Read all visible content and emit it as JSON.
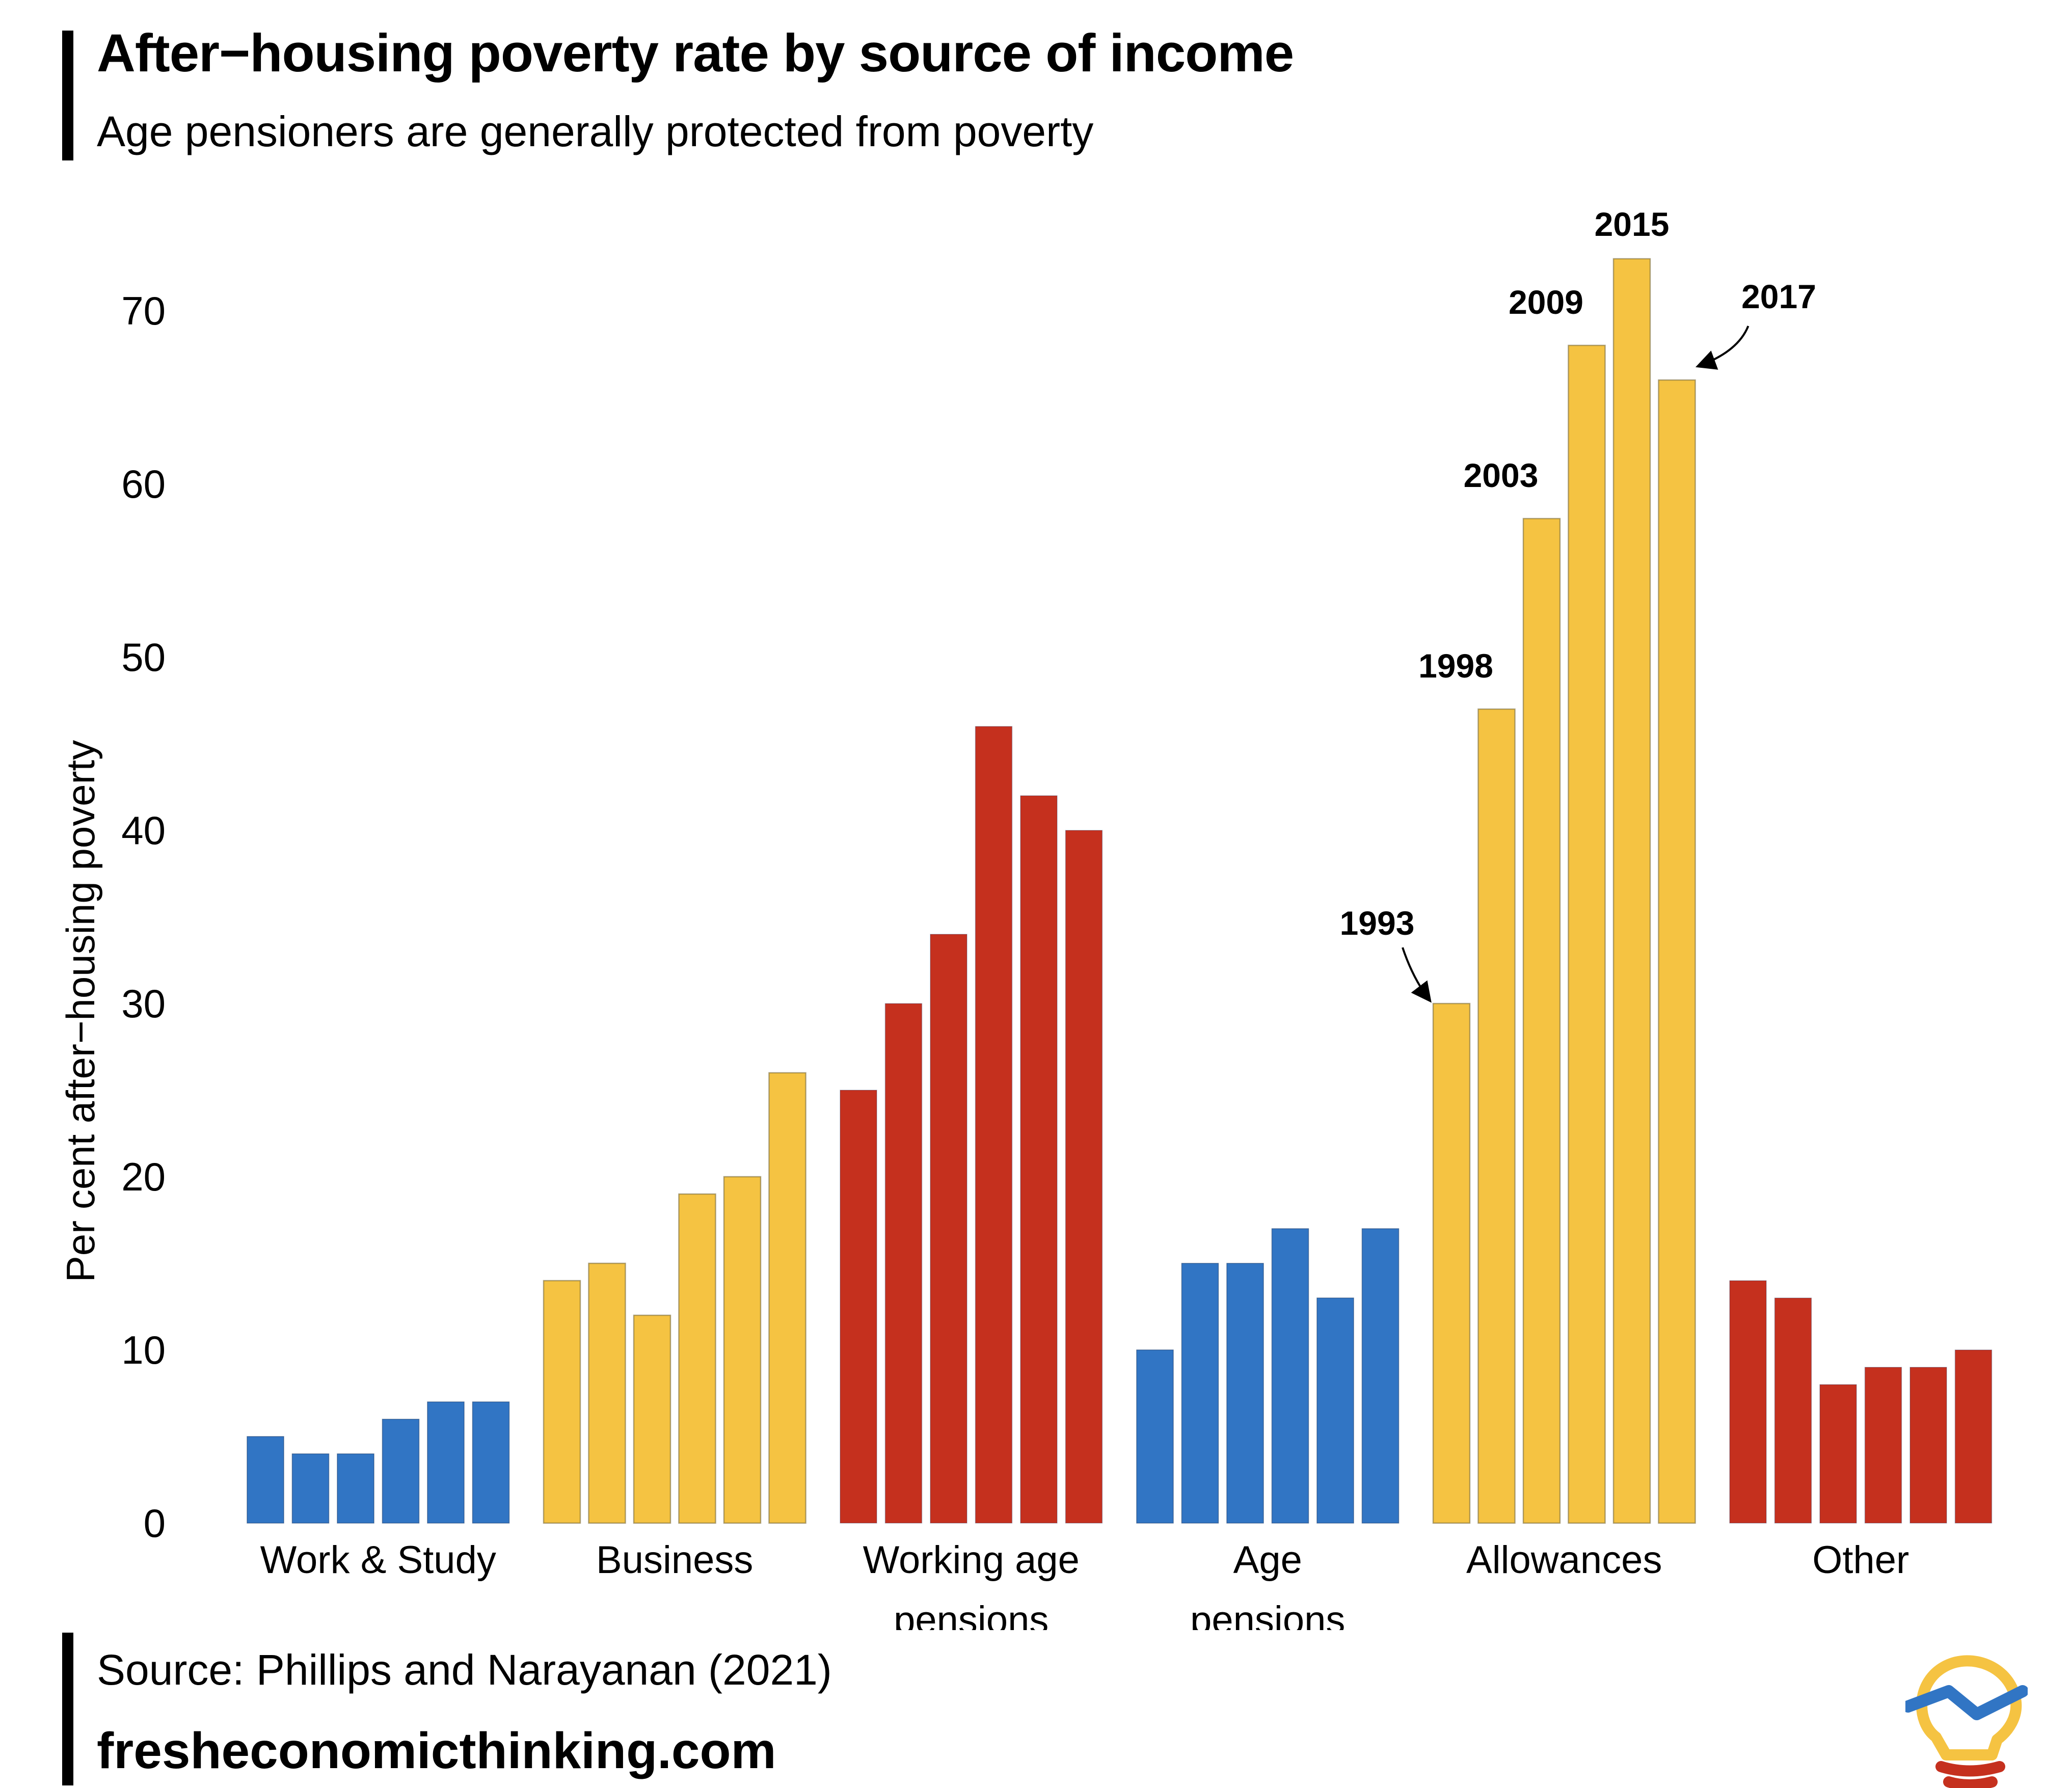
{
  "header": {
    "title": "After−housing poverty rate by source of income",
    "subtitle": "Age pensioners are generally protected from poverty"
  },
  "footer": {
    "source": "Source: Phillips and Narayanan (2021)",
    "website": "fresheconomicthinking.com"
  },
  "colors": {
    "blue": "#3175c4",
    "yellow": "#f5c342",
    "red": "#c5301e"
  },
  "chart_data": {
    "type": "bar",
    "title": "After−housing poverty rate by source of income",
    "subtitle": "Age pensioners are generally protected from poverty",
    "ylabel": "Per cent after−housing poverty",
    "xlabel": "",
    "ylim": [
      0,
      75
    ],
    "yticks": [
      0,
      10,
      20,
      30,
      40,
      50,
      60,
      70
    ],
    "grid": false,
    "years": [
      "1993",
      "1998",
      "2003",
      "2009",
      "2015",
      "2017"
    ],
    "groups": [
      {
        "label": [
          "Work & Study"
        ],
        "color": "blue",
        "values": [
          5,
          4,
          4,
          6,
          7,
          7
        ]
      },
      {
        "label": [
          "Business"
        ],
        "color": "yellow",
        "values": [
          14,
          15,
          12,
          19,
          20,
          26
        ]
      },
      {
        "label": [
          "Working age",
          "pensions"
        ],
        "color": "red",
        "values": [
          25,
          30,
          34,
          46,
          42,
          40
        ]
      },
      {
        "label": [
          "Age",
          "pensions"
        ],
        "color": "blue",
        "values": [
          10,
          15,
          15,
          17,
          13,
          17
        ]
      },
      {
        "label": [
          "Allowances"
        ],
        "color": "yellow",
        "values": [
          30,
          47,
          58,
          68,
          73,
          66
        ]
      },
      {
        "label": [
          "Other"
        ],
        "color": "red",
        "values": [
          14,
          13,
          8,
          9,
          9,
          10
        ]
      }
    ],
    "annotations": [
      {
        "group": 4,
        "bar": 0,
        "text": "1993",
        "arrow": true
      },
      {
        "group": 4,
        "bar": 1,
        "text": "1998",
        "arrow": false
      },
      {
        "group": 4,
        "bar": 2,
        "text": "2003",
        "arrow": false
      },
      {
        "group": 4,
        "bar": 3,
        "text": "2009",
        "arrow": false
      },
      {
        "group": 4,
        "bar": 4,
        "text": "2015",
        "arrow": false
      },
      {
        "group": 4,
        "bar": 5,
        "text": "2017",
        "arrow": true
      }
    ]
  }
}
